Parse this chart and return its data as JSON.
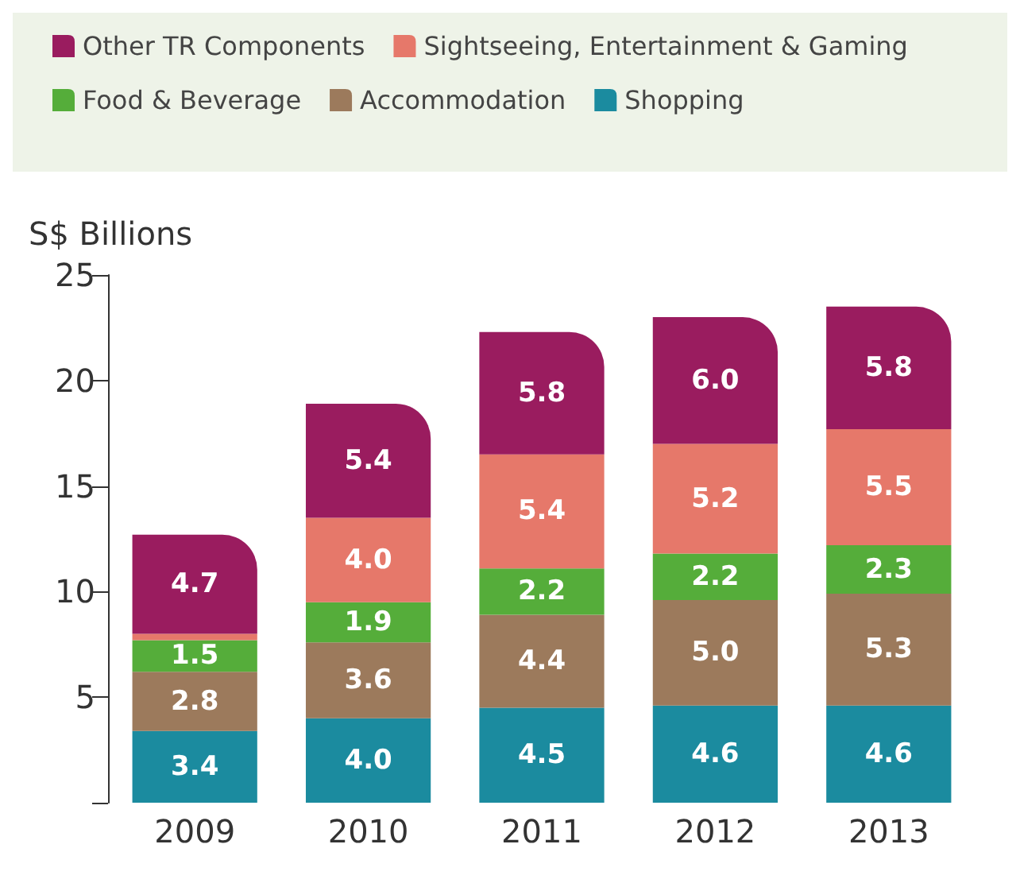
{
  "chart_data": {
    "type": "bar",
    "stacked": true,
    "ylabel": "S$ Billions",
    "categories": [
      "2009",
      "2010",
      "2011",
      "2012",
      "2013"
    ],
    "ylim": [
      0,
      25
    ],
    "yticks": [
      {
        "value": 0,
        "label": null
      },
      5,
      10,
      15,
      20,
      25
    ],
    "legend": "top",
    "grid": false,
    "series": [
      {
        "name": "Shopping",
        "color": "#1b8b9f",
        "values": [
          3.4,
          4.0,
          4.5,
          4.6,
          4.6
        ],
        "value_labels": [
          "3.4",
          "4.0",
          "4.5",
          "4.6",
          "4.6"
        ]
      },
      {
        "name": "Accommodation",
        "color": "#9c7a5c",
        "values": [
          2.8,
          3.6,
          4.4,
          5.0,
          5.3
        ],
        "value_labels": [
          "2.8",
          "3.6",
          "4.4",
          "5.0",
          "5.3"
        ]
      },
      {
        "name": "Food & Beverage",
        "color": "#55ad3a",
        "values": [
          1.5,
          1.9,
          2.2,
          2.2,
          2.3
        ],
        "value_labels": [
          "1.5",
          "1.9",
          "2.2",
          "2.2",
          "2.3"
        ]
      },
      {
        "name": "Sightseeing, Entertainment & Gaming",
        "color": "#e6786a",
        "values": [
          0.3,
          4.0,
          5.4,
          5.2,
          5.5
        ],
        "value_labels": [
          null,
          "4.0",
          "5.4",
          "5.2",
          "5.5"
        ]
      },
      {
        "name": "Other TR Components",
        "color": "#9a1c5f",
        "values": [
          4.7,
          5.4,
          5.8,
          6.0,
          5.8
        ],
        "value_labels": [
          "4.7",
          "5.4",
          "5.8",
          "6.0",
          "5.8"
        ]
      }
    ]
  }
}
